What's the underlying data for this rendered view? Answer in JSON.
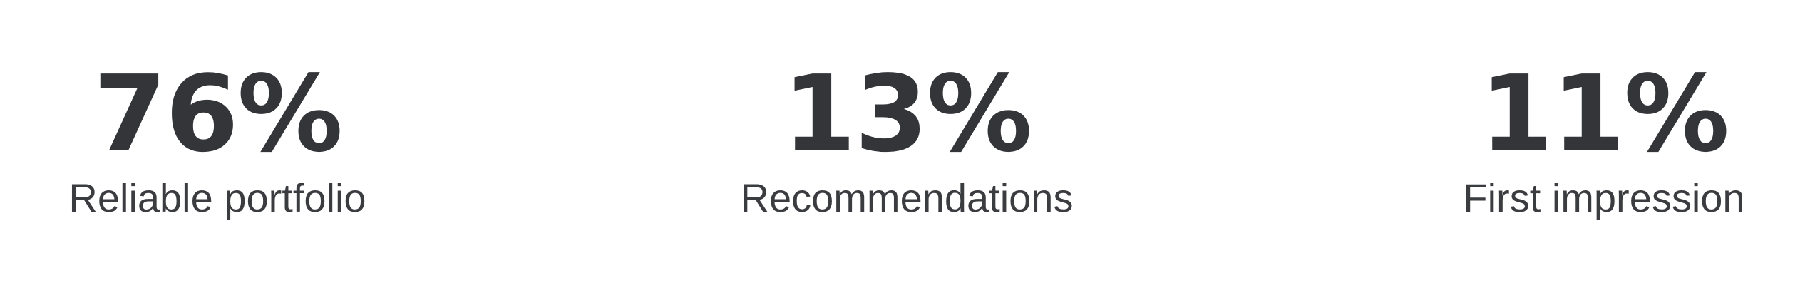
{
  "stats": [
    {
      "value": "76%",
      "label": "Reliable portfolio"
    },
    {
      "value": "13%",
      "label": "Recommendations"
    },
    {
      "value": "11%",
      "label": "First impression"
    }
  ],
  "colors": {
    "text": "#333539",
    "background": "#ffffff"
  }
}
